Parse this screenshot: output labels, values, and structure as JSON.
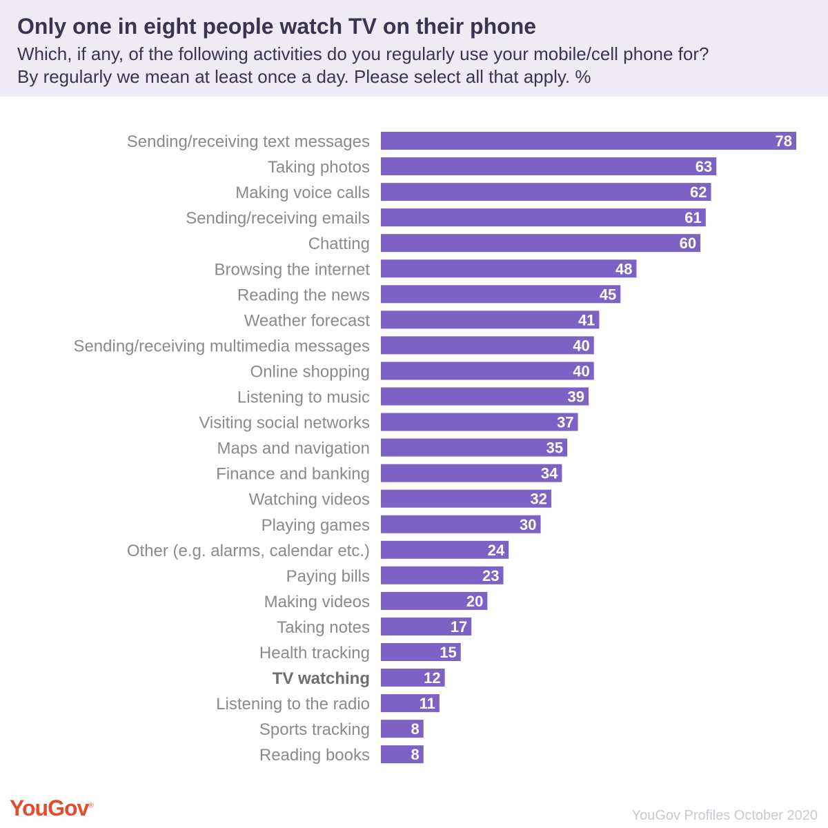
{
  "title": "Only one in eight people watch TV on their phone",
  "subtitle_line1": "Which, if any, of the following activities do you regularly use your mobile/cell phone for?",
  "subtitle_line2": "By regularly we mean at least once a day. Please select all that apply. %",
  "brand": "YouGov",
  "source": "YouGov Profiles October 2020",
  "colors": {
    "bar": "#7b62c4",
    "header_bg": "#eeebf5",
    "label": "#8a8a8a",
    "highlight_label": "#6e6e6e",
    "brand": "#e84a2e"
  },
  "chart_data": {
    "type": "bar",
    "orientation": "horizontal",
    "categories": [
      "Sending/receiving text messages",
      "Taking photos",
      "Making voice calls",
      "Sending/receiving emails",
      "Chatting",
      "Browsing the internet",
      "Reading the news",
      "Weather forecast",
      "Sending/receiving multimedia messages",
      "Online shopping",
      "Listening to music",
      "Visiting social networks",
      "Maps and navigation",
      "Finance and banking",
      "Watching videos",
      "Playing games",
      "Other (e.g. alarms, calendar etc.)",
      "Paying bills",
      "Making videos",
      "Taking notes",
      "Health tracking",
      "TV watching",
      "Listening to the radio",
      "Sports tracking",
      "Reading books"
    ],
    "values": [
      78,
      63,
      62,
      61,
      60,
      48,
      45,
      41,
      40,
      40,
      39,
      37,
      35,
      34,
      32,
      30,
      24,
      23,
      20,
      17,
      15,
      12,
      11,
      8,
      8
    ],
    "highlight": "TV watching",
    "xlim": [
      0,
      78
    ],
    "data_labels": "inside-end",
    "grid": false,
    "legend": "none"
  }
}
